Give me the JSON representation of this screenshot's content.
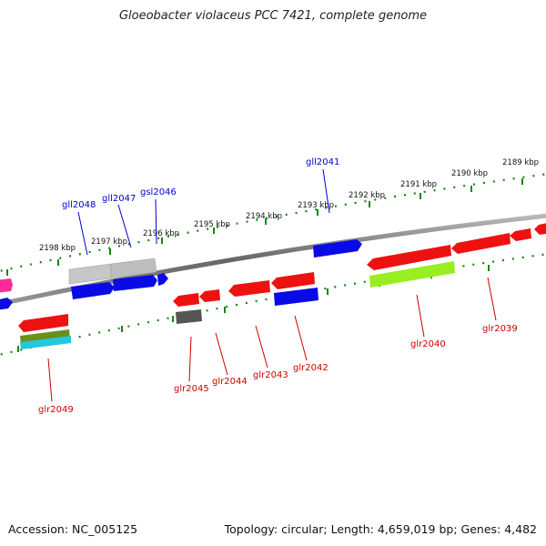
{
  "title": "Gloeobacter violaceus PCC 7421, complete genome",
  "footer": {
    "accession": "Accession: NC_005125",
    "topology": "Topology: circular; Length: 4,659,019 bp; Genes: 4,482"
  },
  "kbp_labels": [
    "2189 kbp",
    "2190 kbp",
    "2191 kbp",
    "2192 kbp",
    "2193 kbp",
    "2194 kbp",
    "2195 kbp",
    "2196 kbp",
    "2197 kbp",
    "2198 kbp"
  ],
  "genes_top": [
    "gll2041",
    "gsl2046",
    "gll2047",
    "gll2048"
  ],
  "genes_bottom": [
    "glr2039",
    "glr2040",
    "glr2042",
    "glr2043",
    "glr2044",
    "glr2045",
    "glr2049"
  ],
  "colors": {
    "forward_label": "#0000cc",
    "reverse_label": "#cc0000",
    "dna": "#777777",
    "ticks": "#118811"
  }
}
